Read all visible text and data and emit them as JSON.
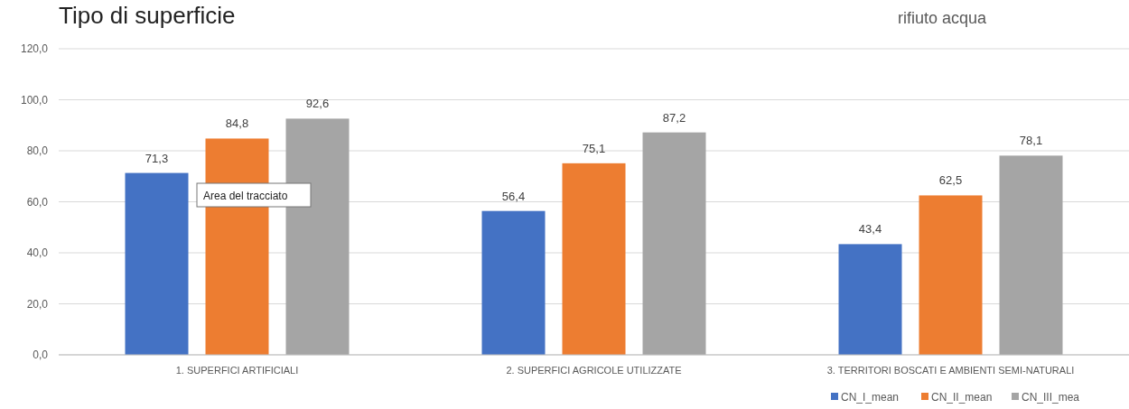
{
  "chart_data": {
    "type": "bar",
    "title": "Tipo di superficie",
    "subtitle": "rifiuto acqua",
    "categories": [
      "1. SUPERFICI ARTIFICIALI",
      "2. SUPERFICI AGRICOLE UTILIZZATE",
      "3. TERRITORI BOSCATI E AMBIENTI SEMI-NATURALI"
    ],
    "series": [
      {
        "name": "CN_I_mean",
        "color": "#4472c4",
        "values": [
          71.3,
          56.4,
          43.4
        ],
        "value_labels": [
          "71,3",
          "56,4",
          "43,4"
        ]
      },
      {
        "name": "CN_II_mean",
        "color": "#ed7d31",
        "values": [
          84.8,
          75.1,
          62.5
        ],
        "value_labels": [
          "84,8",
          "75,1",
          "62,5"
        ]
      },
      {
        "name": "CN_III_mea",
        "color": "#a5a5a5",
        "values": [
          92.6,
          87.2,
          78.1
        ],
        "value_labels": [
          "92,6",
          "87,2",
          "78,1"
        ]
      }
    ],
    "ylim": [
      0,
      120
    ],
    "yticks": [
      {
        "value": 0,
        "label": "0,0"
      },
      {
        "value": 20,
        "label": "20,0"
      },
      {
        "value": 40,
        "label": "40,0"
      },
      {
        "value": 60,
        "label": "60,0"
      },
      {
        "value": 80,
        "label": "80,0"
      },
      {
        "value": 100,
        "label": "100,0"
      },
      {
        "value": 120,
        "label": "120,0"
      }
    ],
    "grid": "y",
    "legend": "bottom right",
    "annotations": [
      "Area del tracciato"
    ]
  }
}
